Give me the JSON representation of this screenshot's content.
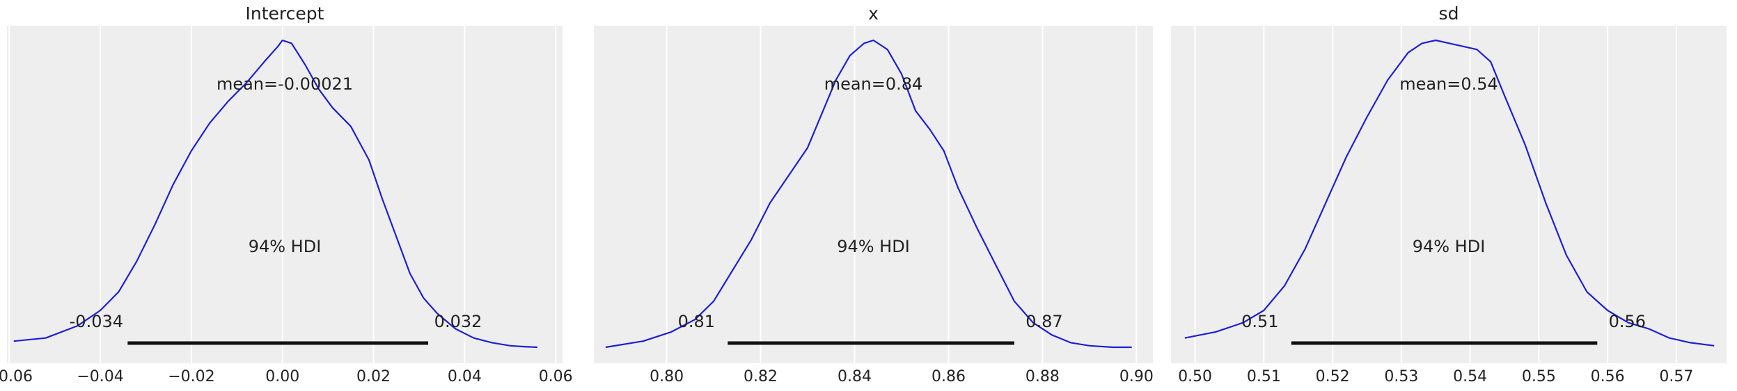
{
  "chart_data": [
    {
      "type": "line",
      "title": "Intercept",
      "xlim": [
        -0.0605,
        0.0615
      ],
      "xticks": [
        -0.06,
        -0.04,
        -0.02,
        0.0,
        0.02,
        0.04,
        0.06
      ],
      "xtick_labels": [
        "−0.06",
        "−0.04",
        "−0.02",
        "0.00",
        "0.02",
        "0.04",
        "0.06"
      ],
      "grid": true,
      "mean_label": "mean=-0.00021",
      "hdi_label": "94% HDI",
      "hdi": [
        -0.034,
        0.032
      ],
      "hdi_low_label": "-0.034",
      "hdi_high_label": "0.032",
      "line_color": "#1f1fd6",
      "hdi_color": "#111111",
      "background": "#eeeeee",
      "density": {
        "x": [
          -0.059,
          -0.052,
          -0.045,
          -0.04,
          -0.036,
          -0.032,
          -0.028,
          -0.024,
          -0.02,
          -0.016,
          -0.012,
          -0.008,
          -0.004,
          -0.001,
          0.0,
          0.002,
          0.005,
          0.008,
          0.011,
          0.015,
          0.019,
          0.022,
          0.025,
          0.028,
          0.031,
          0.034,
          0.038,
          0.042,
          0.046,
          0.05,
          0.053,
          0.056
        ],
        "y": [
          0.02,
          0.03,
          0.07,
          0.12,
          0.18,
          0.28,
          0.4,
          0.53,
          0.64,
          0.73,
          0.8,
          0.86,
          0.93,
          0.98,
          1.0,
          0.99,
          0.92,
          0.84,
          0.78,
          0.72,
          0.61,
          0.48,
          0.36,
          0.24,
          0.16,
          0.11,
          0.06,
          0.03,
          0.015,
          0.005,
          0.002,
          0.0
        ]
      }
    },
    {
      "type": "line",
      "title": "x",
      "xlim": [
        0.7845,
        0.9035
      ],
      "xticks": [
        0.8,
        0.82,
        0.84,
        0.86,
        0.88,
        0.9
      ],
      "xtick_labels": [
        "0.80",
        "0.82",
        "0.84",
        "0.86",
        "0.88",
        "0.90"
      ],
      "grid": true,
      "mean_label": "mean=0.84",
      "hdi_label": "94% HDI",
      "hdi": [
        0.813,
        0.874
      ],
      "hdi_low_label": "0.81",
      "hdi_high_label": "0.87",
      "line_color": "#1f1fd6",
      "hdi_color": "#111111",
      "background": "#eeeeee",
      "density": {
        "x": [
          0.787,
          0.795,
          0.801,
          0.806,
          0.81,
          0.814,
          0.818,
          0.822,
          0.826,
          0.83,
          0.833,
          0.836,
          0.839,
          0.842,
          0.844,
          0.847,
          0.85,
          0.853,
          0.856,
          0.859,
          0.862,
          0.866,
          0.87,
          0.874,
          0.878,
          0.882,
          0.886,
          0.89,
          0.895,
          0.899
        ],
        "y": [
          0.0,
          0.02,
          0.05,
          0.09,
          0.15,
          0.25,
          0.35,
          0.47,
          0.56,
          0.65,
          0.76,
          0.87,
          0.95,
          0.99,
          1.0,
          0.97,
          0.89,
          0.77,
          0.71,
          0.64,
          0.52,
          0.39,
          0.27,
          0.15,
          0.08,
          0.04,
          0.015,
          0.005,
          0.0,
          0.0
        ]
      }
    },
    {
      "type": "line",
      "title": "sd",
      "xlim": [
        0.4965,
        0.5773
      ],
      "xticks": [
        0.5,
        0.51,
        0.52,
        0.53,
        0.54,
        0.55,
        0.56,
        0.57
      ],
      "xtick_labels": [
        "0.50",
        "0.51",
        "0.52",
        "0.53",
        "0.54",
        "0.55",
        "0.56",
        "0.57"
      ],
      "grid": true,
      "mean_label": "mean=0.54",
      "hdi_label": "94% HDI",
      "hdi": [
        0.514,
        0.5585
      ],
      "hdi_low_label": "0.51",
      "hdi_high_label": "0.56",
      "line_color": "#1f1fd6",
      "hdi_color": "#111111",
      "background": "#eeeeee",
      "density": {
        "x": [
          0.4985,
          0.503,
          0.507,
          0.51,
          0.513,
          0.516,
          0.519,
          0.522,
          0.525,
          0.528,
          0.531,
          0.533,
          0.535,
          0.537,
          0.539,
          0.541,
          0.543,
          0.545,
          0.548,
          0.551,
          0.554,
          0.557,
          0.56,
          0.563,
          0.566,
          0.569,
          0.572,
          0.5755
        ],
        "y": [
          0.03,
          0.05,
          0.08,
          0.12,
          0.2,
          0.32,
          0.47,
          0.62,
          0.75,
          0.87,
          0.96,
          0.99,
          1.0,
          0.99,
          0.98,
          0.97,
          0.93,
          0.82,
          0.66,
          0.47,
          0.3,
          0.18,
          0.12,
          0.08,
          0.06,
          0.03,
          0.015,
          0.005
        ]
      }
    }
  ]
}
